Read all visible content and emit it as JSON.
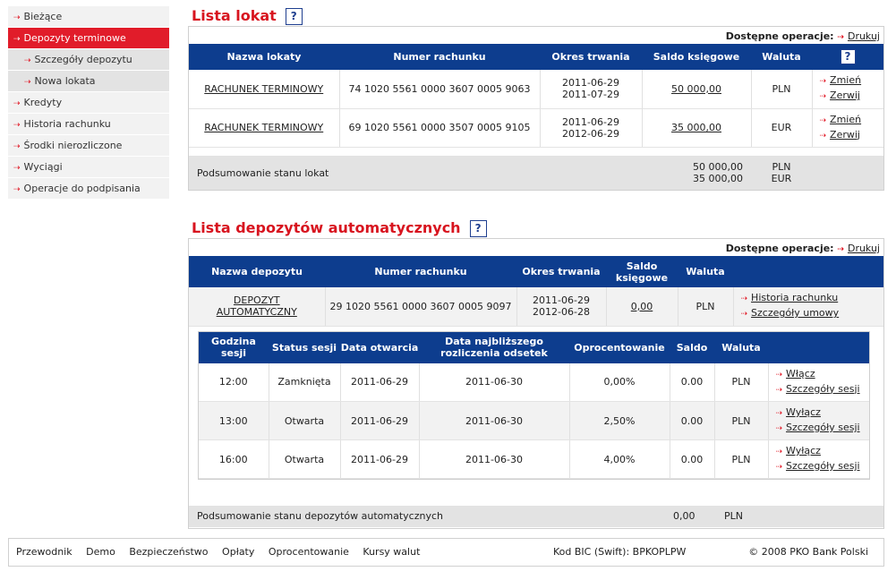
{
  "sidebar": {
    "items": [
      {
        "label": "Bieżące"
      },
      {
        "label": "Depozyty terminowe"
      },
      {
        "label": "Szczegóły depozytu"
      },
      {
        "label": "Nowa lokata"
      },
      {
        "label": "Kredyty"
      },
      {
        "label": "Historia rachunku"
      },
      {
        "label": "Środki nierozliczone"
      },
      {
        "label": "Wyciągi"
      },
      {
        "label": "Operacje do podpisania"
      }
    ]
  },
  "lokaty": {
    "title": "Lista lokat",
    "help": "?",
    "ops_label": "Dostępne operacje:",
    "ops_print": "Drukuj",
    "headers": [
      "Nazwa lokaty",
      "Numer rachunku",
      "Okres trwania",
      "Saldo księgowe",
      "Waluta",
      "?"
    ],
    "rows": [
      {
        "name": "RACHUNEK TERMINOWY",
        "account": "74 1020 5561 0000 3607 0005 9063",
        "from": "2011-06-29",
        "to": "2011-07-29",
        "balance": "50 000,00",
        "currency": "PLN",
        "a1": "Zmień",
        "a2": "Zerwij"
      },
      {
        "name": "RACHUNEK TERMINOWY",
        "account": "69 1020 5561 0000 3507 0005 9105",
        "from": "2011-06-29",
        "to": "2012-06-29",
        "balance": "35 000,00",
        "currency": "EUR",
        "a1": "Zmień",
        "a2": "Zerwij"
      }
    ],
    "summary_label": "Podsumowanie stanu lokat",
    "summary_bal1": "50 000,00",
    "summary_bal2": "35 000,00",
    "summary_cur1": "PLN",
    "summary_cur2": "EUR"
  },
  "auto": {
    "title": "Lista depozytów automatycznych",
    "help": "?",
    "ops_label": "Dostępne operacje:",
    "ops_print": "Drukuj",
    "headers": [
      "Nazwa depozytu",
      "Numer rachunku",
      "Okres trwania",
      "Saldo księgowe",
      "Waluta"
    ],
    "row": {
      "name1": "DEPOZYT",
      "name2": "AUTOMATYCZNY",
      "account": "29 1020 5561 0000 3607 0005 9097",
      "from": "2011-06-29",
      "to": "2012-06-28",
      "balance": "0,00",
      "currency": "PLN",
      "a1": "Historia rachunku",
      "a2": "Szczegóły umowy"
    },
    "session_headers": [
      "Godzina sesji",
      "Status sesji",
      "Data otwarcia",
      "Data najbliższego rozliczenia odsetek",
      "Oprocentowanie",
      "Saldo",
      "Waluta"
    ],
    "sessions": [
      {
        "time": "12:00",
        "status": "Zamknięta",
        "opened": "2011-06-29",
        "next": "2011-06-30",
        "rate": "0,00%",
        "balance": "0.00",
        "currency": "PLN",
        "a1": "Włącz",
        "a2": "Szczegóły sesji"
      },
      {
        "time": "13:00",
        "status": "Otwarta",
        "opened": "2011-06-29",
        "next": "2011-06-30",
        "rate": "2,50%",
        "balance": "0.00",
        "currency": "PLN",
        "a1": "Wyłącz",
        "a2": "Szczegóły sesji"
      },
      {
        "time": "16:00",
        "status": "Otwarta",
        "opened": "2011-06-29",
        "next": "2011-06-30",
        "rate": "4,00%",
        "balance": "0.00",
        "currency": "PLN",
        "a1": "Wyłącz",
        "a2": "Szczegóły sesji"
      }
    ],
    "summary_label": "Podsumowanie stanu depozytów automatycznych",
    "summary_bal": "0,00",
    "summary_cur": "PLN"
  },
  "footer": {
    "links": [
      "Przewodnik",
      "Demo",
      "Bezpieczeństwo",
      "Opłaty",
      "Oprocentowanie",
      "Kursy walut"
    ],
    "bic": "Kod BIC (Swift): BPKOPLPW",
    "copyright": "© 2008 PKO Bank Polski"
  },
  "colors": {
    "accent": "#e11c2a",
    "header": "#0d3d8e",
    "summary": "#e3e3e3"
  }
}
